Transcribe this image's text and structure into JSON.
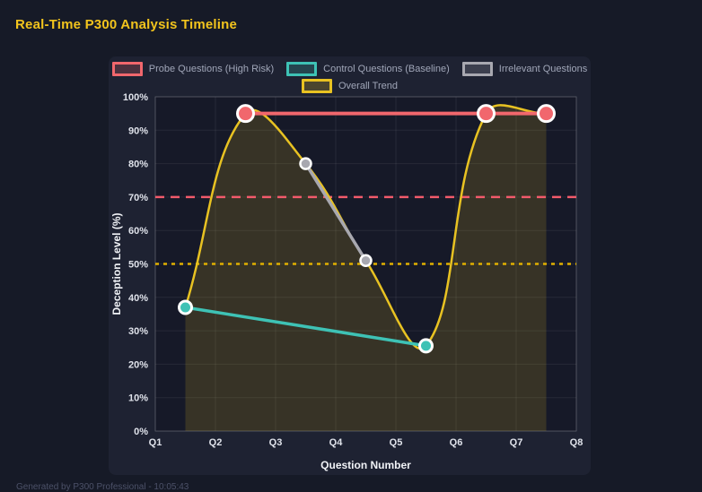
{
  "page": {
    "title": "Real-Time P300 Analysis Timeline",
    "footer": "Generated by P300 Professional - 10:05:43"
  },
  "colors": {
    "page_bg": "#161a27",
    "panel_bg": "#1e2232",
    "grid": "rgba(255,255,255,0.07)",
    "plot_border": "rgba(255,255,255,0.18)",
    "tick_text": "#dfe2ea",
    "axis_title_text": "#f0f2f6",
    "legend_text": "#a0a6b8",
    "title_text": "#f2c41d",
    "point_border": "#ffffff"
  },
  "chart_data": {
    "type": "line",
    "title": "Real-Time P300 Analysis Timeline",
    "xlabel": "Question Number",
    "ylabel": "Deception Level (%)",
    "x_range": [
      1,
      8
    ],
    "x_ticks": [
      "Q1",
      "Q2",
      "Q3",
      "Q4",
      "Q5",
      "Q6",
      "Q7",
      "Q8"
    ],
    "y_range": [
      0,
      100
    ],
    "y_tick_step": 10,
    "y_ticks": [
      "0%",
      "10%",
      "20%",
      "30%",
      "40%",
      "50%",
      "60%",
      "70%",
      "80%",
      "90%",
      "100%"
    ],
    "grid": true,
    "legend_position": "top",
    "series": [
      {
        "name": "Probe Questions (High Risk)",
        "color": "#f1676d",
        "points": [
          [
            2.5,
            95
          ],
          [
            6.5,
            95
          ],
          [
            7.5,
            95
          ]
        ],
        "line_width": 4,
        "point_radius": 9,
        "point_border_width": 3,
        "smooth": false
      },
      {
        "name": "Control Questions (Baseline)",
        "color": "#3ec2b5",
        "points": [
          [
            1.5,
            37
          ],
          [
            5.5,
            25.5
          ]
        ],
        "line_width": 3.5,
        "point_radius": 7,
        "point_border_width": 3,
        "smooth": false
      },
      {
        "name": "Irrelevant Questions",
        "color": "#a8a8b0",
        "points": [
          [
            3.5,
            80
          ],
          [
            4.5,
            51
          ]
        ],
        "line_width": 3.5,
        "point_radius": 6,
        "point_border_width": 2.5,
        "smooth": false
      },
      {
        "name": "Overall Trend",
        "color": "#e8c222",
        "points": [
          [
            1.5,
            37
          ],
          [
            2.5,
            95
          ],
          [
            3.5,
            80
          ],
          [
            4.5,
            51
          ],
          [
            5.5,
            25.5
          ],
          [
            6.5,
            95
          ],
          [
            7.5,
            95
          ]
        ],
        "line_width": 2.5,
        "point_radius": 0,
        "point_border_width": 0,
        "smooth": true,
        "tension": 0.4,
        "fill": "rgba(232,194,34,0.16)"
      }
    ],
    "annotations": [
      {
        "type": "hline",
        "y": 70,
        "color": "#f25a6b",
        "dash": [
          10,
          7
        ],
        "width": 2.5
      },
      {
        "type": "hline",
        "y": 50,
        "color": "#e0b000",
        "dash": [
          4,
          5
        ],
        "width": 2.5
      }
    ]
  }
}
